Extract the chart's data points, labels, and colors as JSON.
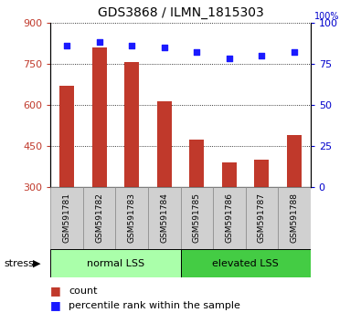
{
  "title": "GDS3868 / ILMN_1815303",
  "categories": [
    "GSM591781",
    "GSM591782",
    "GSM591783",
    "GSM591784",
    "GSM591785",
    "GSM591786",
    "GSM591787",
    "GSM591788"
  ],
  "bar_values": [
    670,
    810,
    755,
    615,
    475,
    390,
    400,
    490
  ],
  "percentile_values": [
    86,
    88,
    86,
    85,
    82,
    78,
    80,
    82
  ],
  "ylim_left": [
    300,
    900
  ],
  "ylim_right": [
    0,
    100
  ],
  "yticks_left": [
    300,
    450,
    600,
    750,
    900
  ],
  "yticks_right": [
    0,
    25,
    50,
    75,
    100
  ],
  "bar_color": "#C0392B",
  "dot_color": "#1A1AFF",
  "group1_label": "normal LSS",
  "group2_label": "elevated LSS",
  "group1_color": "#AAFFAA",
  "group2_color": "#44CC44",
  "stress_label": "stress",
  "legend_bar_label": "count",
  "legend_dot_label": "percentile rank within the sample",
  "tick_color_left": "#C0392B",
  "tick_color_right": "#0000CC",
  "bar_width": 0.45,
  "figsize": [
    3.95,
    3.54
  ],
  "dpi": 100
}
